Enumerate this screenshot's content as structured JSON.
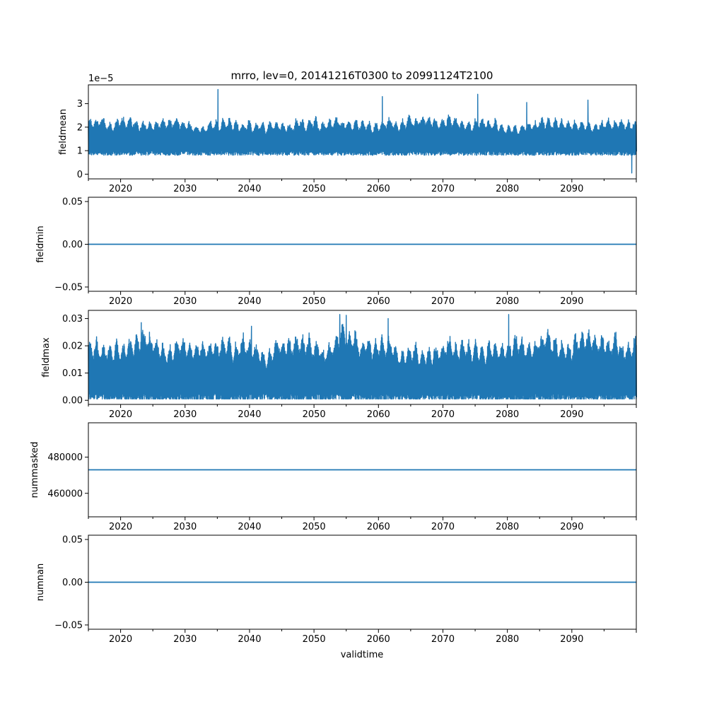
{
  "title": "mrro, lev=0, 20141216T0300 to 20991124T2100",
  "xlabel": "validtime",
  "x_ticks": [
    "2020",
    "2030",
    "2040",
    "2050",
    "2060",
    "2070",
    "2080",
    "2090"
  ],
  "x_range": [
    2015.0,
    2100.0
  ],
  "colors": {
    "line": "#1f77b4",
    "axis": "#000000",
    "background": "#ffffff"
  },
  "chart_data": [
    {
      "type": "line",
      "name": "fieldmean",
      "ylabel": "fieldmean",
      "offset_label": "1e−5",
      "ylim": [
        -0.2,
        3.8
      ],
      "yticks": [
        0,
        1,
        2,
        3
      ],
      "ytick_labels": [
        "0",
        "1",
        "2",
        "3"
      ],
      "series_kind": "noisy",
      "envelope": {
        "typical_low": 0.9,
        "typical_high": 2.2,
        "min": 0.05,
        "max": 3.6
      },
      "spikes": [
        {
          "x": 2035.1,
          "y": 3.6
        },
        {
          "x": 2060.6,
          "y": 3.3
        },
        {
          "x": 2075.4,
          "y": 3.4
        },
        {
          "x": 2083.0,
          "y": 3.05
        },
        {
          "x": 2092.5,
          "y": 3.15
        },
        {
          "x": 2099.3,
          "y": 0.05
        }
      ]
    },
    {
      "type": "line",
      "name": "fieldmin",
      "ylabel": "fieldmin",
      "ylim": [
        -0.055,
        0.055
      ],
      "yticks": [
        -0.05,
        0.0,
        0.05
      ],
      "ytick_labels": [
        "−0.05",
        "0.00",
        "0.05"
      ],
      "series_kind": "constant",
      "constant_value": 0.0
    },
    {
      "type": "line",
      "name": "fieldmax",
      "ylabel": "fieldmax",
      "ylim": [
        -0.0015,
        0.033
      ],
      "yticks": [
        0.0,
        0.01,
        0.02,
        0.03
      ],
      "ytick_labels": [
        "0.00",
        "0.01",
        "0.02",
        "0.03"
      ],
      "series_kind": "noisy",
      "envelope": {
        "typical_low": 0.001,
        "typical_high": 0.022,
        "min": 0.0005,
        "max": 0.0315
      },
      "spikes": [
        {
          "x": 2054.0,
          "y": 0.0315
        },
        {
          "x": 2055.0,
          "y": 0.0312
        },
        {
          "x": 2080.2,
          "y": 0.0315
        },
        {
          "x": 2040.3,
          "y": 0.0272
        },
        {
          "x": 2023.2,
          "y": 0.0285
        },
        {
          "x": 2061.5,
          "y": 0.03
        }
      ]
    },
    {
      "type": "line",
      "name": "nummasked",
      "ylabel": "nummasked",
      "ylim": [
        447000,
        499000
      ],
      "yticks": [
        460000,
        480000
      ],
      "ytick_labels": [
        "460000",
        "480000"
      ],
      "series_kind": "constant",
      "constant_value": 473000
    },
    {
      "type": "line",
      "name": "numnan",
      "ylabel": "numnan",
      "ylim": [
        -0.055,
        0.055
      ],
      "yticks": [
        -0.05,
        0.0,
        0.05
      ],
      "ytick_labels": [
        "−0.05",
        "0.00",
        "0.05"
      ],
      "series_kind": "constant",
      "constant_value": 0.0
    }
  ]
}
